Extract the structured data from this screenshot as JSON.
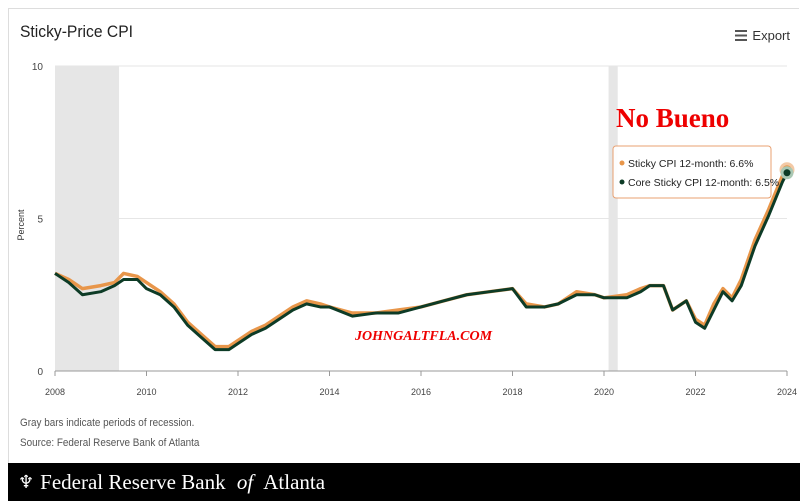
{
  "header": {
    "title": "Sticky-Price CPI",
    "export_label": "Export"
  },
  "notes": {
    "recession": "Gray bars indicate periods of recession.",
    "source": "Source: Federal Reserve Bank of Atlanta"
  },
  "footer": {
    "brand_pre": "Federal Reserve Bank ",
    "brand_of": "of",
    "brand_post": " Atlanta"
  },
  "annotations": {
    "headline": "No Bueno",
    "watermark": "JOHNGALTFLA.COM"
  },
  "tooltip": {
    "items": [
      {
        "label": "Sticky CPI 12-month: 6.6%",
        "color": "#e8964a"
      },
      {
        "label": "Core Sticky CPI 12-month: 6.5%",
        "color": "#0d3b26"
      }
    ]
  },
  "chart_data": {
    "type": "line",
    "title": "Sticky-Price CPI",
    "ylabel": "Percent",
    "xlim": [
      2008,
      2024
    ],
    "ylim": [
      0,
      10
    ],
    "yticks": [
      0,
      5,
      10
    ],
    "xticks": [
      2008,
      2010,
      2012,
      2014,
      2016,
      2018,
      2020,
      2022,
      2024
    ],
    "recessions": [
      [
        2008,
        2009.4
      ],
      [
        2020.1,
        2020.3
      ]
    ],
    "series": [
      {
        "name": "Sticky CPI 12-month",
        "color": "#e8964a",
        "x": [
          2008,
          2008.3,
          2008.6,
          2009,
          2009.3,
          2009.5,
          2009.8,
          2010,
          2010.3,
          2010.6,
          2010.9,
          2011.2,
          2011.5,
          2011.8,
          2012,
          2012.3,
          2012.6,
          2012.9,
          2013.2,
          2013.5,
          2013.8,
          2014,
          2014.5,
          2015,
          2015.5,
          2016,
          2016.5,
          2017,
          2017.5,
          2018,
          2018.3,
          2018.7,
          2019,
          2019.4,
          2019.8,
          2020,
          2020.5,
          2020.8,
          2021,
          2021.3,
          2021.5,
          2021.8,
          2022,
          2022.2,
          2022.4,
          2022.6,
          2022.8,
          2023,
          2023.3,
          2023.6,
          2023.9,
          2024
        ],
        "y": [
          3.2,
          3.0,
          2.7,
          2.8,
          2.9,
          3.2,
          3.1,
          2.9,
          2.6,
          2.2,
          1.6,
          1.2,
          0.8,
          0.8,
          1.0,
          1.3,
          1.5,
          1.8,
          2.1,
          2.3,
          2.2,
          2.1,
          1.9,
          1.9,
          2.0,
          2.1,
          2.3,
          2.5,
          2.6,
          2.7,
          2.2,
          2.1,
          2.2,
          2.6,
          2.5,
          2.4,
          2.5,
          2.7,
          2.8,
          2.8,
          2.0,
          2.3,
          1.7,
          1.5,
          2.2,
          2.7,
          2.4,
          3.0,
          4.3,
          5.3,
          6.4,
          6.6
        ]
      },
      {
        "name": "Core Sticky CPI 12-month",
        "color": "#0d3b26",
        "x": [
          2008,
          2008.3,
          2008.6,
          2009,
          2009.3,
          2009.5,
          2009.8,
          2010,
          2010.3,
          2010.6,
          2010.9,
          2011.2,
          2011.5,
          2011.8,
          2012,
          2012.3,
          2012.6,
          2012.9,
          2013.2,
          2013.5,
          2013.8,
          2014,
          2014.5,
          2015,
          2015.5,
          2016,
          2016.5,
          2017,
          2017.5,
          2018,
          2018.3,
          2018.7,
          2019,
          2019.4,
          2019.8,
          2020,
          2020.5,
          2020.8,
          2021,
          2021.3,
          2021.5,
          2021.8,
          2022,
          2022.2,
          2022.4,
          2022.6,
          2022.8,
          2023,
          2023.3,
          2023.6,
          2023.9,
          2024
        ],
        "y": [
          3.2,
          2.9,
          2.5,
          2.6,
          2.8,
          3.0,
          3.0,
          2.7,
          2.5,
          2.1,
          1.5,
          1.1,
          0.7,
          0.7,
          0.9,
          1.2,
          1.4,
          1.7,
          2.0,
          2.2,
          2.1,
          2.1,
          1.8,
          1.9,
          1.9,
          2.1,
          2.3,
          2.5,
          2.6,
          2.7,
          2.1,
          2.1,
          2.2,
          2.5,
          2.5,
          2.4,
          2.4,
          2.6,
          2.8,
          2.8,
          2.0,
          2.3,
          1.6,
          1.4,
          2.0,
          2.6,
          2.3,
          2.8,
          4.1,
          5.1,
          6.2,
          6.5
        ]
      }
    ]
  }
}
